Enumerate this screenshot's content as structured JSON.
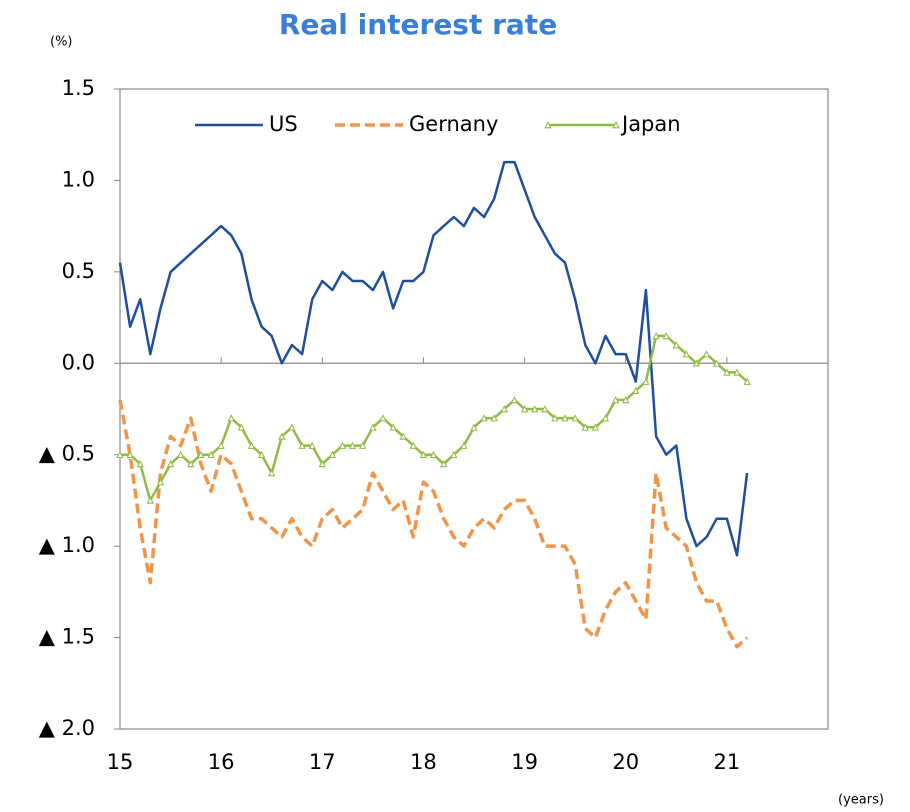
{
  "chart_data": {
    "type": "line",
    "title": "Real interest rate",
    "y_unit": "(%)",
    "x_unit": "(years)",
    "x": [
      15.0,
      15.1,
      15.2,
      15.3,
      15.4,
      15.5,
      15.6,
      15.7,
      15.8,
      15.9,
      16.0,
      16.1,
      16.2,
      16.3,
      16.4,
      16.5,
      16.6,
      16.7,
      16.8,
      16.9,
      17.0,
      17.1,
      17.2,
      17.3,
      17.4,
      17.5,
      17.6,
      17.7,
      17.8,
      17.9,
      18.0,
      18.1,
      18.2,
      18.3,
      18.4,
      18.5,
      18.6,
      18.7,
      18.8,
      18.9,
      19.0,
      19.1,
      19.2,
      19.3,
      19.4,
      19.5,
      19.6,
      19.7,
      19.8,
      19.9,
      20.0,
      20.1,
      20.2,
      20.3,
      20.4,
      20.5,
      20.6,
      20.7,
      20.8,
      20.9,
      21.0,
      21.1,
      21.2
    ],
    "series": [
      {
        "name": "US",
        "color": "#1f4e9c",
        "style": "solid",
        "values": [
          0.55,
          0.2,
          0.35,
          0.05,
          0.3,
          0.5,
          0.55,
          0.6,
          0.65,
          0.7,
          0.75,
          0.7,
          0.6,
          0.35,
          0.2,
          0.15,
          0.0,
          0.1,
          0.05,
          0.35,
          0.45,
          0.4,
          0.5,
          0.45,
          0.45,
          0.4,
          0.5,
          0.3,
          0.45,
          0.45,
          0.5,
          0.7,
          0.75,
          0.8,
          0.75,
          0.85,
          0.8,
          0.9,
          1.1,
          1.1,
          0.95,
          0.8,
          0.7,
          0.6,
          0.55,
          0.35,
          0.1,
          0.0,
          0.15,
          0.05,
          0.05,
          -0.1,
          0.4,
          -0.4,
          -0.5,
          -0.45,
          -0.85,
          -1.0,
          -0.95,
          -0.85,
          -0.85,
          -1.05,
          -0.6
        ]
      },
      {
        "name": "Gernany",
        "color": "#f0954a",
        "style": "dashed",
        "values": [
          -0.2,
          -0.5,
          -0.9,
          -1.2,
          -0.6,
          -0.4,
          -0.45,
          -0.3,
          -0.55,
          -0.7,
          -0.5,
          -0.55,
          -0.7,
          -0.85,
          -0.85,
          -0.9,
          -0.95,
          -0.85,
          -0.95,
          -1.0,
          -0.85,
          -0.8,
          -0.9,
          -0.85,
          -0.8,
          -0.6,
          -0.7,
          -0.8,
          -0.75,
          -0.95,
          -0.65,
          -0.7,
          -0.85,
          -0.95,
          -1.0,
          -0.9,
          -0.85,
          -0.9,
          -0.8,
          -0.75,
          -0.75,
          -0.85,
          -1.0,
          -1.0,
          -1.0,
          -1.1,
          -1.45,
          -1.5,
          -1.35,
          -1.25,
          -1.2,
          -1.3,
          -1.4,
          -0.6,
          -0.9,
          -0.95,
          -1.0,
          -1.2,
          -1.3,
          -1.3,
          -1.45,
          -1.55,
          -1.5
        ]
      },
      {
        "name": "Japan",
        "color": "#8fbc45",
        "style": "solid",
        "marker": "triangle",
        "values": [
          -0.5,
          -0.5,
          -0.55,
          -0.75,
          -0.65,
          -0.55,
          -0.5,
          -0.55,
          -0.5,
          -0.5,
          -0.45,
          -0.3,
          -0.35,
          -0.45,
          -0.5,
          -0.6,
          -0.4,
          -0.35,
          -0.45,
          -0.45,
          -0.55,
          -0.5,
          -0.45,
          -0.45,
          -0.45,
          -0.35,
          -0.3,
          -0.35,
          -0.4,
          -0.45,
          -0.5,
          -0.5,
          -0.55,
          -0.5,
          -0.45,
          -0.35,
          -0.3,
          -0.3,
          -0.25,
          -0.2,
          -0.25,
          -0.25,
          -0.25,
          -0.3,
          -0.3,
          -0.3,
          -0.35,
          -0.35,
          -0.3,
          -0.2,
          -0.2,
          -0.15,
          -0.1,
          0.15,
          0.15,
          0.1,
          0.05,
          0.0,
          0.05,
          0.0,
          -0.05,
          -0.05,
          -0.1
        ]
      }
    ],
    "xlim": [
      15,
      22
    ],
    "xticks": [
      15,
      16,
      17,
      18,
      19,
      20,
      21
    ],
    "ylim": [
      -2.0,
      1.5
    ],
    "yticks": [
      {
        "value": -2.0,
        "label": "▲ 2.0"
      },
      {
        "value": -1.5,
        "label": "▲ 1.5"
      },
      {
        "value": -1.0,
        "label": "▲ 1.0"
      },
      {
        "value": -0.5,
        "label": "▲ 0.5"
      },
      {
        "value": 0,
        "label": "0.0"
      },
      0.5,
      {
        "value": 1.0,
        "label": "1.0"
      },
      1.5
    ],
    "legend": "top"
  }
}
